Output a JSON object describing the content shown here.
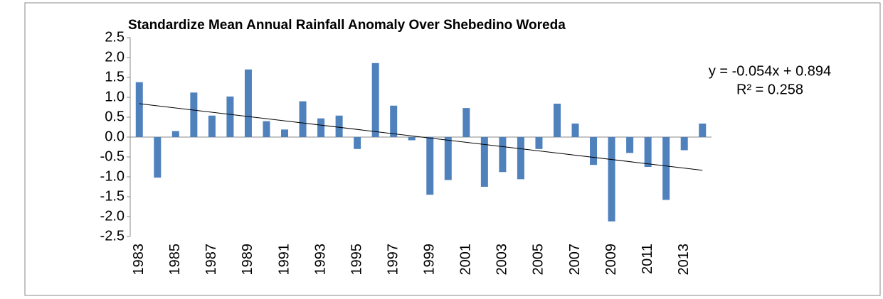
{
  "chart_data": {
    "type": "bar",
    "title": "Standardize Mean Annual Rainfall Anomaly Over  Shebedino Woreda",
    "categories": [
      "1983",
      null,
      "1985",
      null,
      "1987",
      null,
      "1989",
      null,
      "1991",
      null,
      "1993",
      null,
      "1995",
      null,
      "1997",
      null,
      "1999",
      null,
      "2001",
      null,
      "2003",
      null,
      "2005",
      null,
      "2007",
      null,
      "2009",
      null,
      "2011",
      null,
      "2013",
      null
    ],
    "values": [
      1.38,
      -1.02,
      0.15,
      1.12,
      0.54,
      1.02,
      1.7,
      0.4,
      0.19,
      0.9,
      0.47,
      0.54,
      -0.3,
      1.86,
      0.79,
      -0.08,
      -1.45,
      -1.08,
      0.73,
      -1.25,
      -0.88,
      -1.06,
      -0.3,
      0.84,
      0.34,
      -0.7,
      -2.12,
      -0.4,
      -0.75,
      -1.58,
      -0.33,
      0.34
    ],
    "color": "#4f81bd",
    "ylim": [
      -2.5,
      2.5
    ],
    "yticks": [
      2.5,
      {
        "value": 2,
        "label": "2.0"
      },
      1.5,
      {
        "value": 1,
        "label": "1.0"
      },
      0.5,
      {
        "value": 0,
        "label": "0.0"
      },
      -0.5,
      {
        "value": -1,
        "label": "-1.0"
      },
      -1.5,
      {
        "value": -2,
        "label": "-2.0"
      },
      -2.5
    ],
    "trendline": {
      "slope": -0.054,
      "intercept": 0.894,
      "label": "y = -0.054x + 0.894",
      "r2_label": "R² = 0.258"
    },
    "grid": false
  }
}
